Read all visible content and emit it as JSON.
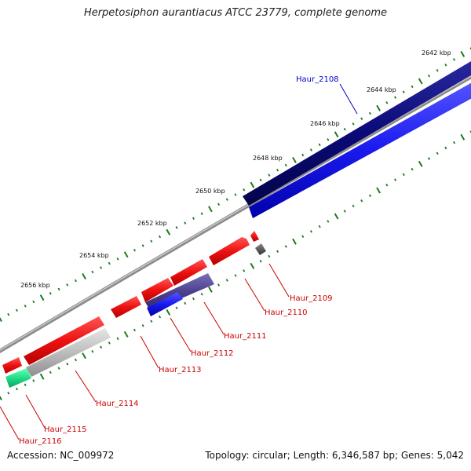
{
  "header": {
    "title": "Herpetosiphon aurantiacus ATCC 23779, complete genome"
  },
  "footer": {
    "accession": "Accession: NC_009972",
    "summary": "Topology: circular; Length: 6,346,587 bp; Genes: 5,042"
  },
  "scale": {
    "ticks": [
      "2642 kbp",
      "2644 kbp",
      "2646 kbp",
      "2648 kbp",
      "2650 kbp",
      "2652 kbp",
      "2654 kbp",
      "2656 kbp"
    ]
  },
  "genes": [
    {
      "label": "Haur_2108",
      "label_color": "#0000cc"
    },
    {
      "label": "Haur_2109",
      "label_color": "#cc0000"
    },
    {
      "label": "Haur_2110",
      "label_color": "#cc0000"
    },
    {
      "label": "Haur_2111",
      "label_color": "#cc0000"
    },
    {
      "label": "Haur_2112",
      "label_color": "#cc0000"
    },
    {
      "label": "Haur_2113",
      "label_color": "#cc0000"
    },
    {
      "label": "Haur_2114",
      "label_color": "#cc0000"
    },
    {
      "label": "Haur_2115",
      "label_color": "#cc0000"
    },
    {
      "label": "Haur_2116",
      "label_color": "#cc0000"
    }
  ],
  "colors": {
    "cds": "#ee1111",
    "cds_light": "#ff6666",
    "navy": "#0a0a78",
    "blue": "#1a1aee",
    "slate": "#4a3f8c",
    "grey": "#bdbdbd",
    "green": "#22dd88",
    "darkgrey": "#555555",
    "backbone": "#8c8c8c",
    "tick": "#1a7a1a"
  }
}
